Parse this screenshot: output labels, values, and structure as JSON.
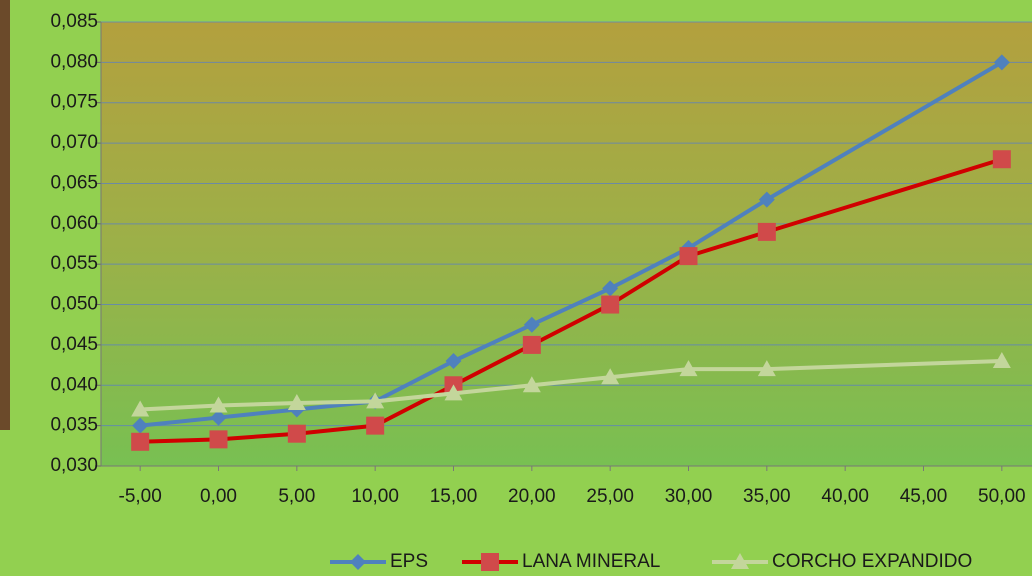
{
  "chart_data": {
    "type": "line",
    "x": [
      -5,
      0,
      5,
      10,
      15,
      20,
      25,
      30,
      35,
      50
    ],
    "series": [
      {
        "name": "EPS",
        "color": "#4f81bd",
        "marker": "diamond",
        "values": [
          0.035,
          0.036,
          0.037,
          0.038,
          0.043,
          0.0475,
          0.052,
          0.057,
          0.063,
          0.08
        ]
      },
      {
        "name": "LANA MINERAL",
        "color": "#d00000",
        "marker_color": "#d04a4a",
        "marker": "square",
        "values": [
          0.033,
          0.0333,
          0.034,
          0.035,
          0.04,
          0.045,
          0.05,
          0.056,
          0.059,
          0.068
        ]
      },
      {
        "name": "CORCHO EXPANDIDO",
        "color": "#c3d69b",
        "marker": "triangle",
        "values": [
          0.037,
          0.0375,
          0.0378,
          0.038,
          0.039,
          0.04,
          0.041,
          0.042,
          0.042,
          0.043
        ]
      }
    ],
    "xlim": [
      -7.5,
      52.5
    ],
    "xticks": [
      {
        "value": -5,
        "label": "-5,00"
      },
      {
        "value": 0,
        "label": "0,00"
      },
      {
        "value": 5,
        "label": "5,00"
      },
      {
        "value": 10,
        "label": "10,00"
      },
      {
        "value": 15,
        "label": "15,00"
      },
      {
        "value": 20,
        "label": "20,00"
      },
      {
        "value": 25,
        "label": "25,00"
      },
      {
        "value": 30,
        "label": "30,00"
      },
      {
        "value": 35,
        "label": "35,00"
      },
      {
        "value": 40,
        "label": "40,00"
      },
      {
        "value": 45,
        "label": "45,00"
      },
      {
        "value": 50,
        "label": "50,00"
      }
    ],
    "ylim": [
      0.03,
      0.085
    ],
    "yticks": [
      {
        "value": 0.03,
        "label": "0,030"
      },
      {
        "value": 0.035,
        "label": "0,035"
      },
      {
        "value": 0.04,
        "label": "0,040"
      },
      {
        "value": 0.045,
        "label": "0,045"
      },
      {
        "value": 0.05,
        "label": "0,050"
      },
      {
        "value": 0.055,
        "label": "0,055"
      },
      {
        "value": 0.06,
        "label": "0,060"
      },
      {
        "value": 0.065,
        "label": "0,065"
      },
      {
        "value": 0.07,
        "label": "0,070"
      },
      {
        "value": 0.075,
        "label": "0,075"
      },
      {
        "value": 0.08,
        "label": "0,080"
      },
      {
        "value": 0.085,
        "label": "0,085"
      }
    ],
    "grid": true,
    "legend": "bottom"
  }
}
